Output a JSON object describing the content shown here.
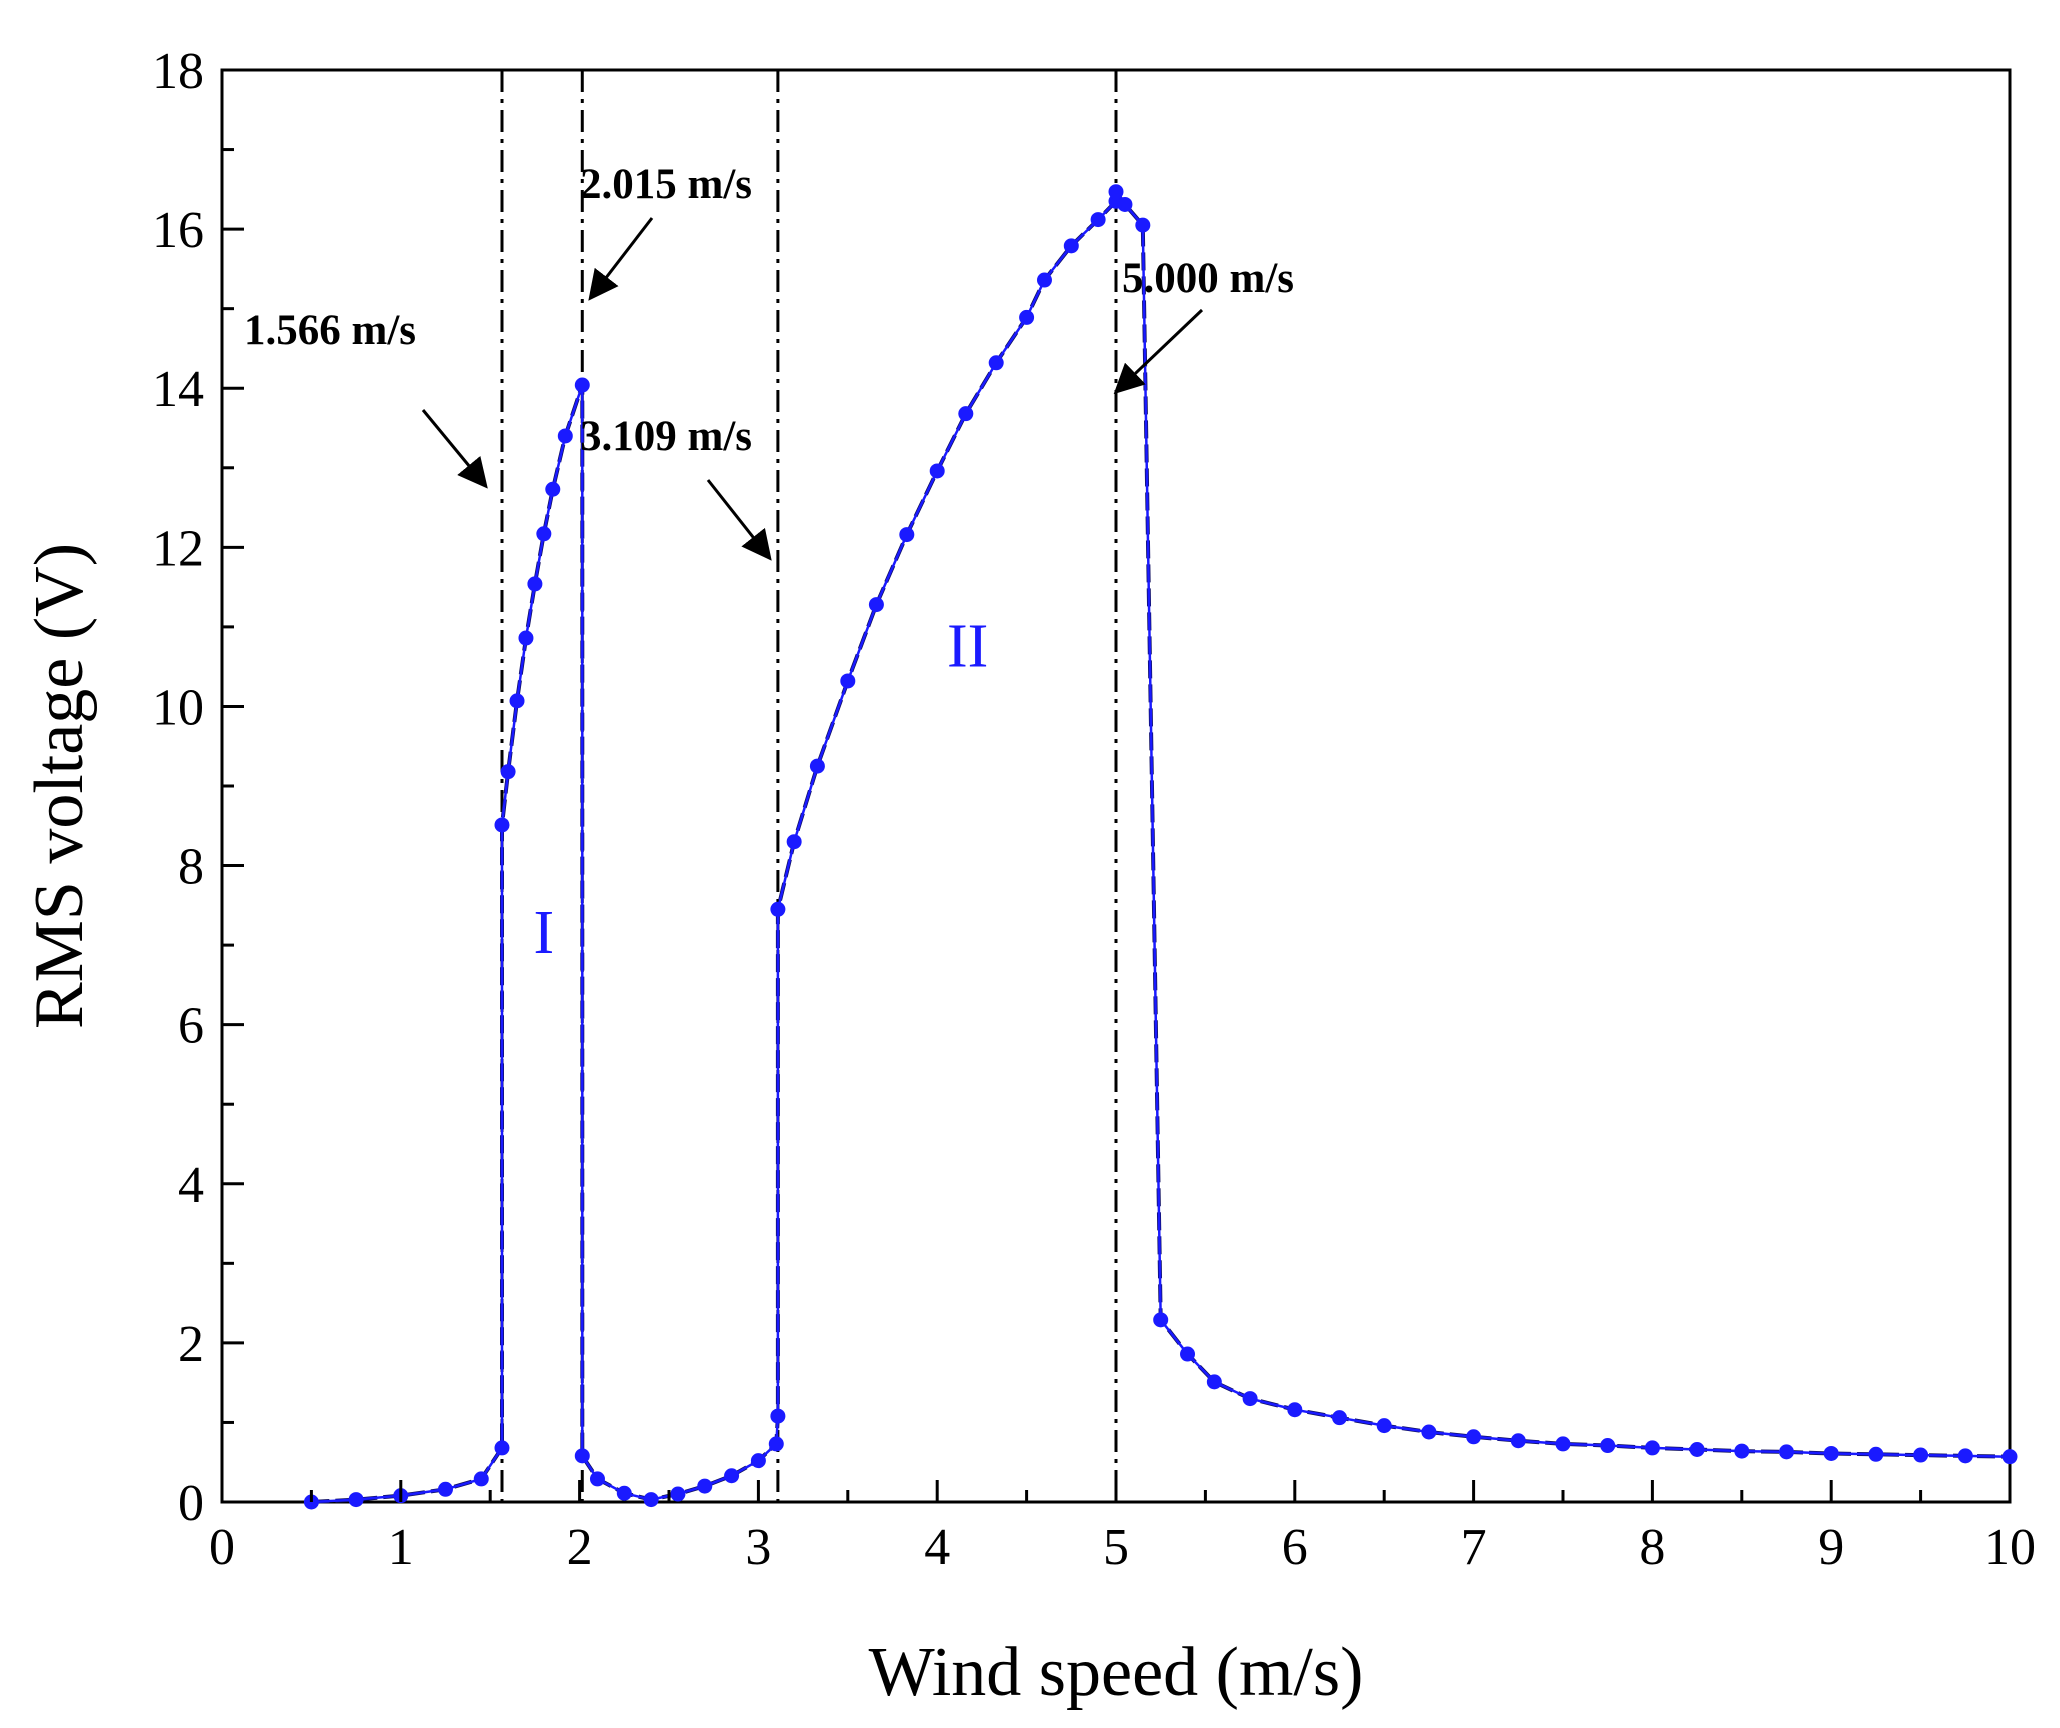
{
  "chart_data": {
    "type": "line",
    "title": "",
    "xlabel": "Wind speed (m/s)",
    "ylabel": "RMS voltage (V)",
    "xlim": [
      0,
      10
    ],
    "ylim": [
      0,
      18
    ],
    "xticks": [
      "0",
      "1",
      "2",
      "3",
      "4",
      "5",
      "6",
      "7",
      "8",
      "9",
      "10"
    ],
    "yticks": [
      "0",
      "2",
      "4",
      "6",
      "8",
      "10",
      "12",
      "14",
      "16",
      "18"
    ],
    "grid": false,
    "legend": "none",
    "series_color": "#1a1aff",
    "line_color": "#101060",
    "series": [
      {
        "name": "RMS voltage",
        "x": [
          0.5,
          0.75,
          1.0,
          1.25,
          1.45,
          1.566,
          1.566,
          1.6,
          1.65,
          1.7,
          1.75,
          1.8,
          1.85,
          1.92,
          2.015,
          2.015,
          2.1,
          2.25,
          2.4,
          2.55,
          2.7,
          2.85,
          3.0,
          3.1,
          3.109,
          3.109,
          3.2,
          3.33,
          3.5,
          3.66,
          3.83,
          4.0,
          4.16,
          4.33,
          4.5,
          4.6,
          4.75,
          4.9,
          5.0,
          5.0,
          5.05,
          5.15,
          5.25,
          5.4,
          5.55,
          5.75,
          6.0,
          6.25,
          6.5,
          6.75,
          7.0,
          7.25,
          7.5,
          7.75,
          8.0,
          8.25,
          8.5,
          8.75,
          9.0,
          9.25,
          9.5,
          9.75,
          10.0
        ],
        "y": [
          0.0,
          0.03,
          0.08,
          0.16,
          0.29,
          0.68,
          8.51,
          9.18,
          10.07,
          10.86,
          11.54,
          12.17,
          12.73,
          13.4,
          14.04,
          0.58,
          0.29,
          0.11,
          0.03,
          0.1,
          0.2,
          0.33,
          0.52,
          0.73,
          1.08,
          7.45,
          8.3,
          9.25,
          10.32,
          11.28,
          12.16,
          12.96,
          13.68,
          14.32,
          14.89,
          15.36,
          15.79,
          16.12,
          16.35,
          16.47,
          16.31,
          16.05,
          2.29,
          1.86,
          1.51,
          1.3,
          1.16,
          1.06,
          0.96,
          0.88,
          0.82,
          0.77,
          0.73,
          0.71,
          0.68,
          0.66,
          0.64,
          0.63,
          0.61,
          0.6,
          0.59,
          0.58,
          0.57
        ],
        "markers": true
      }
    ],
    "vertical_lines": [
      1.566,
      2.015,
      3.109,
      5.0
    ],
    "annotations": [
      {
        "text": "1.566 m/s",
        "x": 1.566,
        "y": 8.51
      },
      {
        "text": "2.015 m/s",
        "x": 2.015,
        "y": 14.04
      },
      {
        "text": "3.109 m/s",
        "x": 3.109,
        "y": 7.45
      },
      {
        "text": "5.000 m/s",
        "x": 5.0,
        "y": 16.05
      }
    ],
    "region_labels": [
      {
        "text": "I",
        "x": 1.8,
        "y": 6.9
      },
      {
        "text": "II",
        "x": 4.17,
        "y": 10.5
      }
    ]
  }
}
